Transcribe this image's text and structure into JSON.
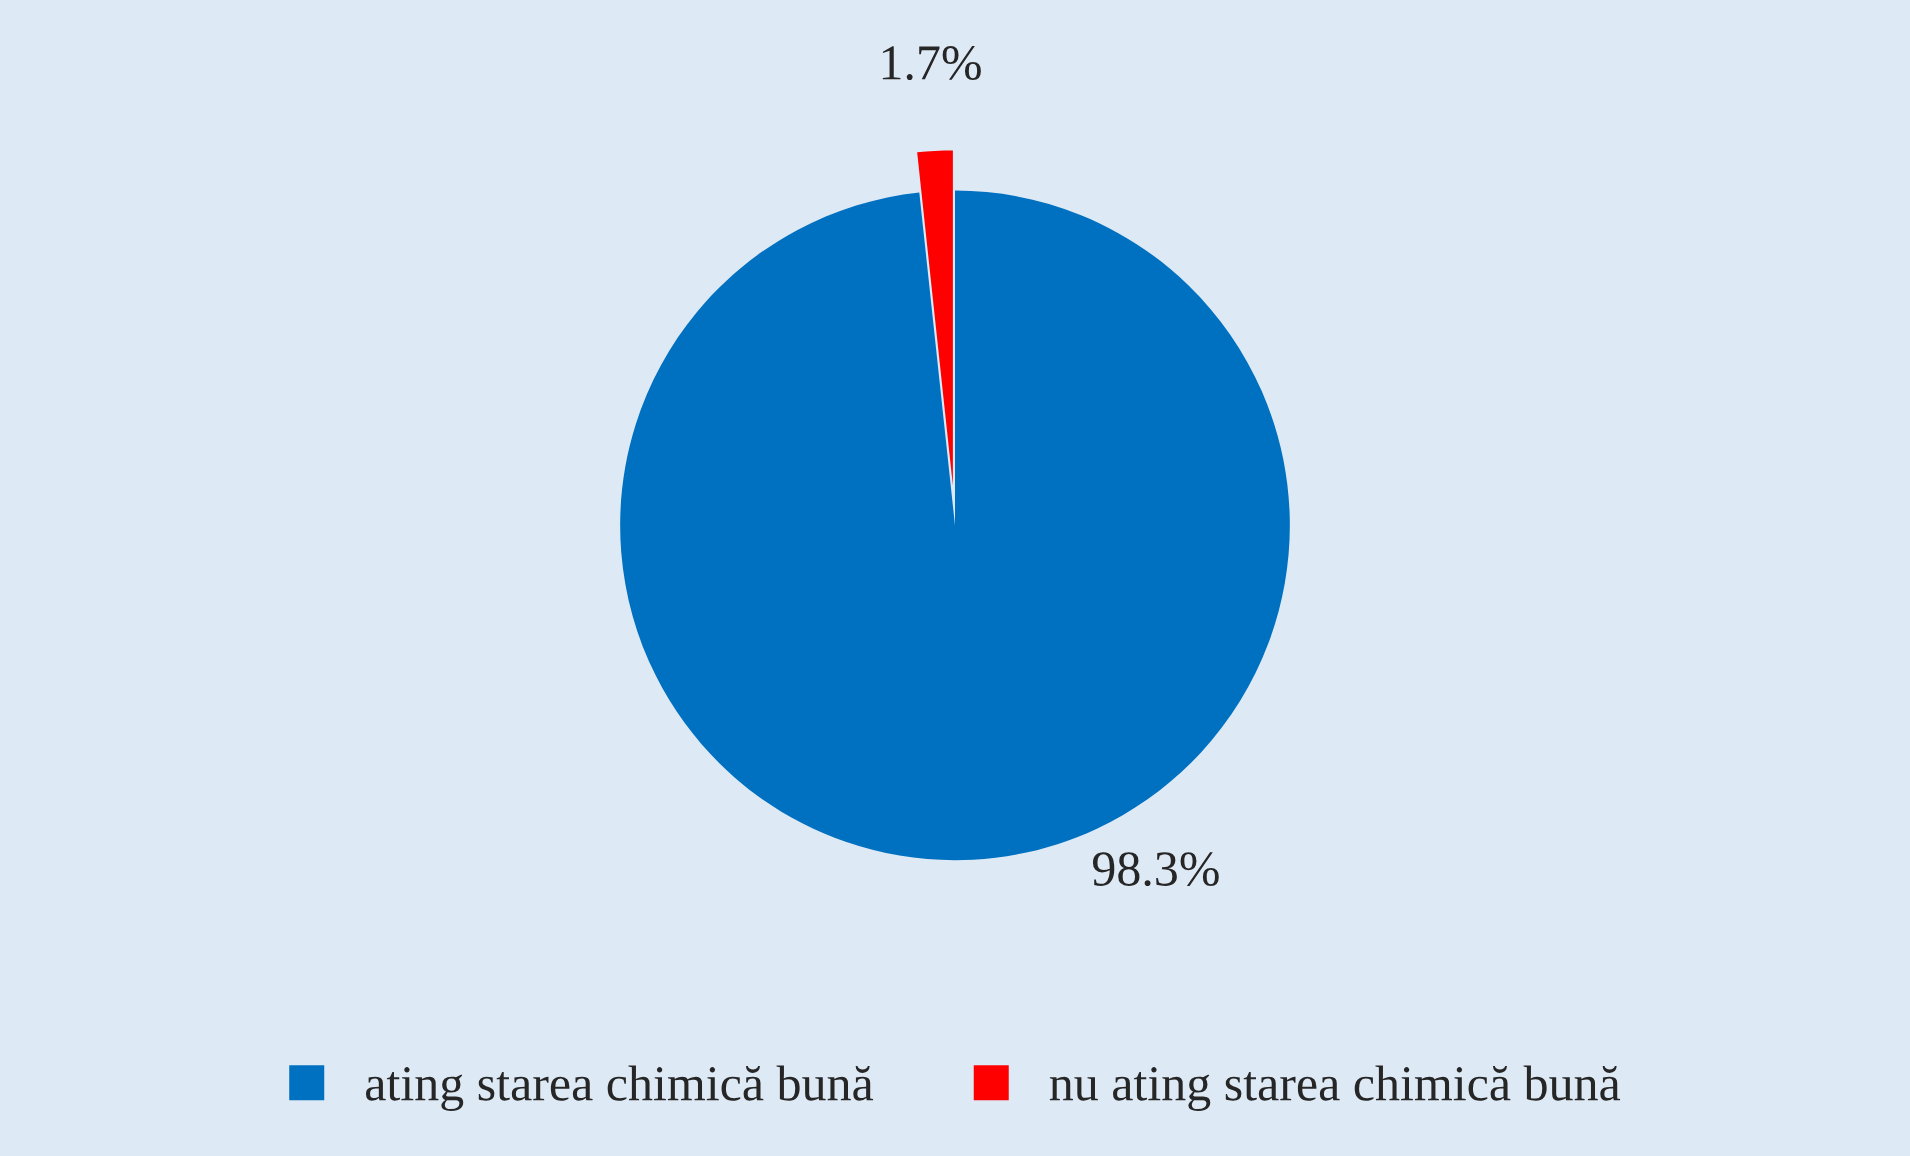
{
  "chart_data": {
    "type": "pie",
    "categories": [
      "ating starea chimică bună",
      "nu ating starea chimică bună"
    ],
    "values": [
      98.3,
      1.7
    ],
    "colors": [
      "#0070c0",
      "#ff0000"
    ],
    "value_labels": [
      "98.3%",
      "1.7%"
    ],
    "legend": "bottom"
  }
}
